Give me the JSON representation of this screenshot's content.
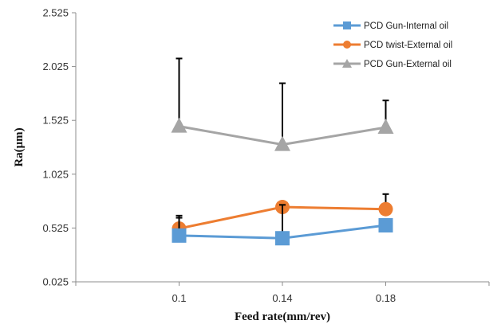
{
  "chart_data": {
    "type": "line",
    "xlabel": "Feed rate(mm/rev)",
    "ylabel": "Ra(μm)",
    "categories": [
      "0.1",
      "0.14",
      "0.18"
    ],
    "yticks": [
      "0.025",
      "0.525",
      "1.025",
      "1.525",
      "2.025",
      "2.525"
    ],
    "ylim": [
      0.025,
      2.525
    ],
    "grid": false,
    "legend_position": "top-right",
    "series": [
      {
        "name": "PCD Gun-Internal oil",
        "values": [
          0.455,
          0.43,
          0.55
        ],
        "error_upper": [
          0.62,
          0.74,
          0.56
        ],
        "color": "#5B9BD5",
        "marker": "square"
      },
      {
        "name": "PCD twist-External oil",
        "values": [
          0.52,
          0.72,
          0.7
        ],
        "error_upper": [
          0.64,
          0.74,
          0.84
        ],
        "color": "#ED7D31",
        "marker": "circle"
      },
      {
        "name": "PCD Gun-External oil",
        "values": [
          1.47,
          1.3,
          1.46
        ],
        "error_upper": [
          2.1,
          1.87,
          1.71
        ],
        "color": "#A5A5A5",
        "marker": "triangle"
      }
    ]
  }
}
